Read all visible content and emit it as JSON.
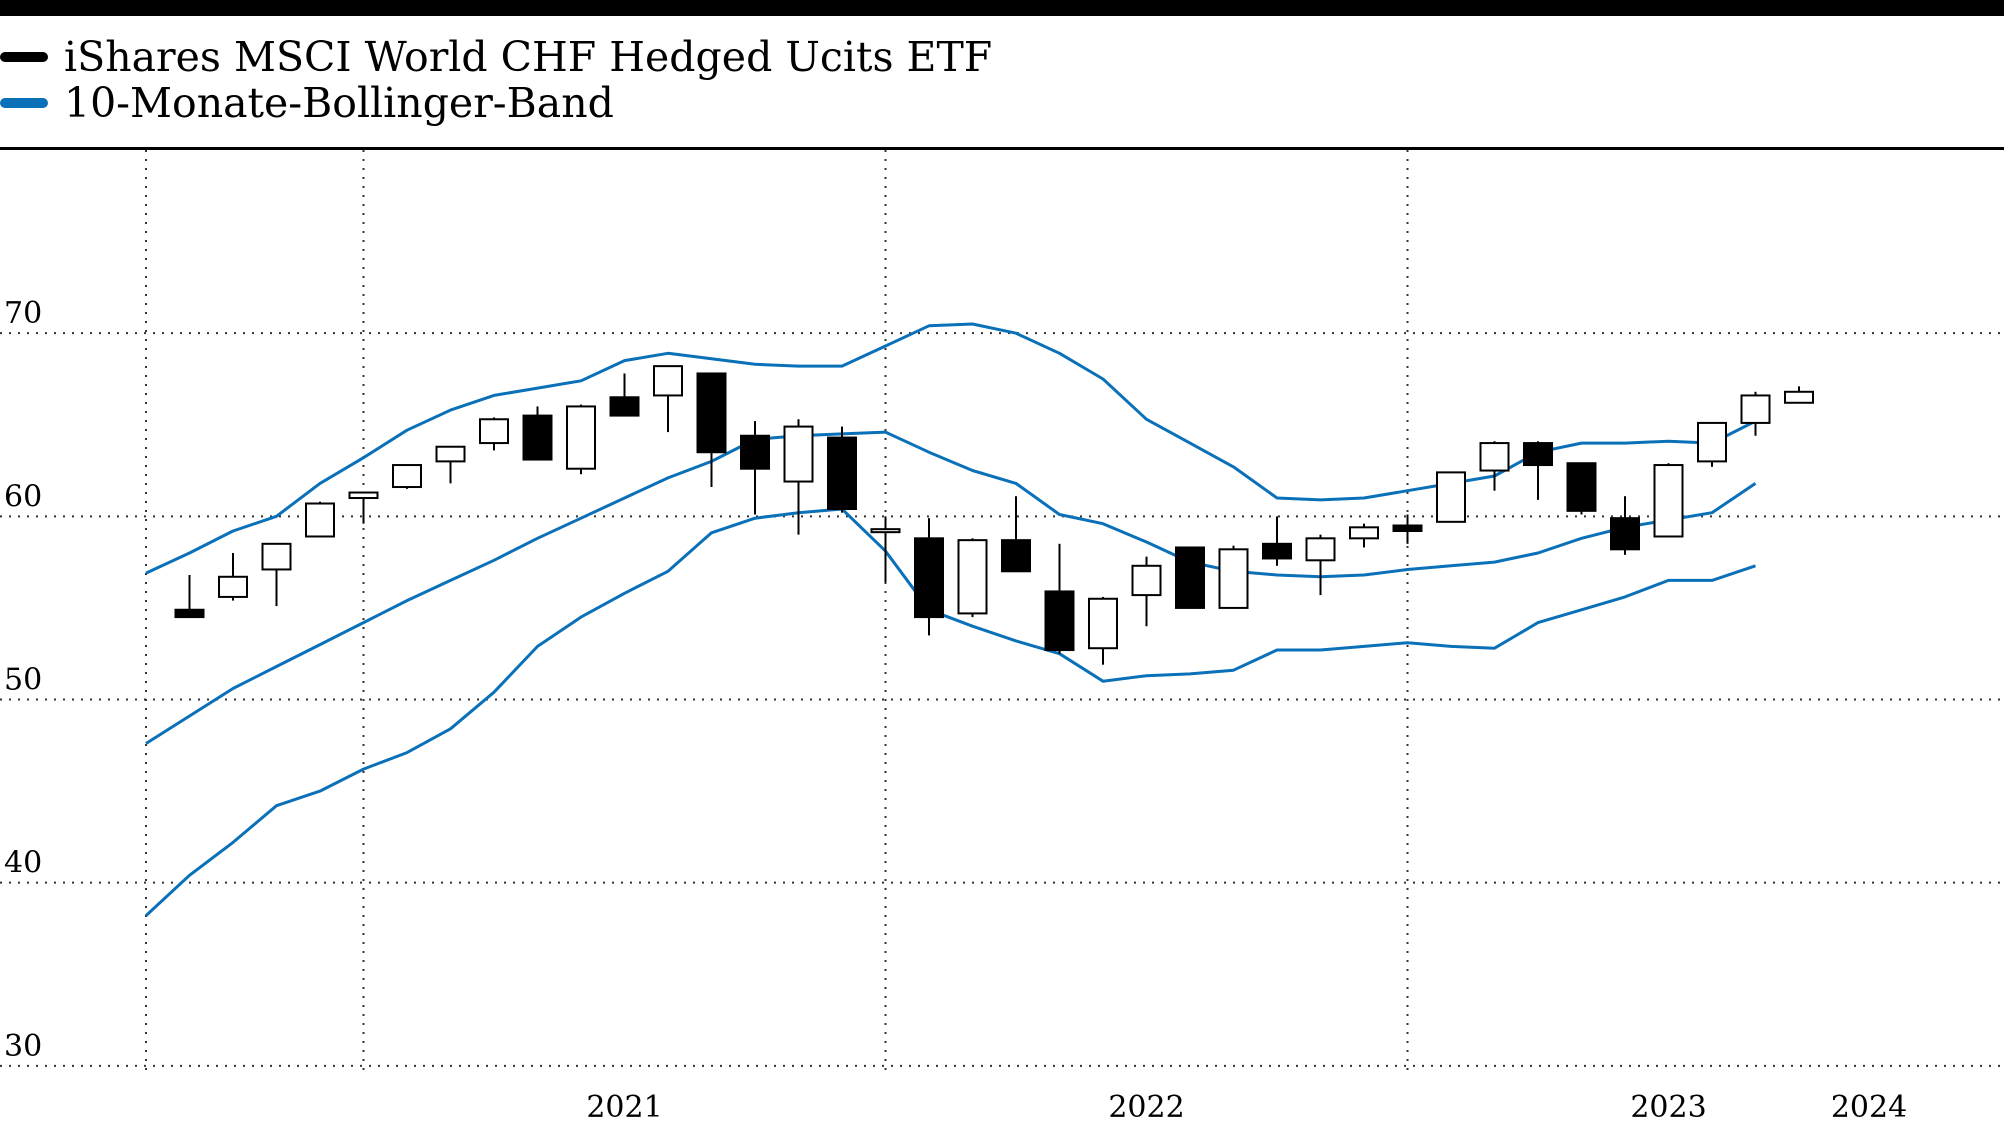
{
  "legend": [
    {
      "label": "iShares MSCI World CHF Hedged Ucits ETF",
      "color": "#000000"
    },
    {
      "label": "10-Monate-Bollinger-Band",
      "color": "#0a70b8"
    }
  ],
  "chart_data": {
    "type": "candlestick",
    "title": "",
    "xlabel": "",
    "ylabel": "",
    "ylim": [
      29.5,
      80
    ],
    "yticks": [
      30,
      40,
      50,
      60,
      70
    ],
    "xtick_labels": [
      "2021",
      "2022",
      "2023",
      "2024"
    ],
    "grid": true,
    "legend_position": "top-left",
    "candles": [
      {
        "date": "2020-09",
        "open": 54.9,
        "high": 56.8,
        "low": 54.5,
        "close": 54.5
      },
      {
        "date": "2020-10",
        "open": 55.6,
        "high": 58.0,
        "low": 55.4,
        "close": 56.7
      },
      {
        "date": "2020-11",
        "open": 57.1,
        "high": 58.5,
        "low": 55.1,
        "close": 58.5
      },
      {
        "date": "2020-12",
        "open": 58.9,
        "high": 60.8,
        "low": 58.9,
        "close": 60.7
      },
      {
        "date": "2021-01",
        "open": 61.0,
        "high": 61.3,
        "low": 59.6,
        "close": 61.3
      },
      {
        "date": "2021-02",
        "open": 61.6,
        "high": 62.8,
        "low": 61.5,
        "close": 62.8
      },
      {
        "date": "2021-03",
        "open": 63.0,
        "high": 63.8,
        "low": 61.8,
        "close": 63.8
      },
      {
        "date": "2021-04",
        "open": 64.0,
        "high": 65.4,
        "low": 63.6,
        "close": 65.3
      },
      {
        "date": "2021-05",
        "open": 65.5,
        "high": 66.0,
        "low": 63.1,
        "close": 63.1
      },
      {
        "date": "2021-06",
        "open": 62.6,
        "high": 66.1,
        "low": 62.3,
        "close": 66.0
      },
      {
        "date": "2021-07",
        "open": 66.5,
        "high": 67.8,
        "low": 65.5,
        "close": 65.5
      },
      {
        "date": "2021-08",
        "open": 66.6,
        "high": 68.2,
        "low": 64.6,
        "close": 68.2
      },
      {
        "date": "2021-09",
        "open": 67.8,
        "high": 67.8,
        "low": 61.6,
        "close": 63.5
      },
      {
        "date": "2021-10",
        "open": 64.4,
        "high": 65.2,
        "low": 60.1,
        "close": 62.6
      },
      {
        "date": "2021-11",
        "open": 61.9,
        "high": 65.3,
        "low": 59.0,
        "close": 64.9
      },
      {
        "date": "2021-12",
        "open": 64.3,
        "high": 64.9,
        "low": 60.2,
        "close": 60.4
      },
      {
        "date": "2022-01",
        "open": 59.3,
        "high": 60.0,
        "low": 56.4,
        "close": 59.3
      },
      {
        "date": "2022-02",
        "open": 58.8,
        "high": 59.9,
        "low": 53.5,
        "close": 54.5
      },
      {
        "date": "2022-03",
        "open": 54.7,
        "high": 58.8,
        "low": 54.5,
        "close": 58.7
      },
      {
        "date": "2022-04",
        "open": 58.7,
        "high": 61.1,
        "low": 57.0,
        "close": 57.0
      },
      {
        "date": "2022-05",
        "open": 55.9,
        "high": 58.5,
        "low": 52.5,
        "close": 52.7
      },
      {
        "date": "2022-06",
        "open": 52.8,
        "high": 55.6,
        "low": 51.9,
        "close": 55.5
      },
      {
        "date": "2022-07",
        "open": 55.7,
        "high": 57.8,
        "low": 54.0,
        "close": 57.3
      },
      {
        "date": "2022-08",
        "open": 58.3,
        "high": 58.3,
        "low": 55.0,
        "close": 55.0
      },
      {
        "date": "2022-09",
        "open": 55.0,
        "high": 58.4,
        "low": 55.0,
        "close": 58.2
      },
      {
        "date": "2022-10",
        "open": 58.5,
        "high": 60.0,
        "low": 57.3,
        "close": 57.7
      },
      {
        "date": "2022-11",
        "open": 57.6,
        "high": 59.0,
        "low": 55.7,
        "close": 58.8
      },
      {
        "date": "2022-12",
        "open": 58.8,
        "high": 59.6,
        "low": 58.3,
        "close": 59.4
      },
      {
        "date": "2023-01",
        "open": 59.5,
        "high": 60.1,
        "low": 58.5,
        "close": 59.2
      },
      {
        "date": "2023-02",
        "open": 59.7,
        "high": 62.4,
        "low": 59.7,
        "close": 62.4
      },
      {
        "date": "2023-03",
        "open": 62.5,
        "high": 64.1,
        "low": 61.4,
        "close": 64.0
      },
      {
        "date": "2023-04",
        "open": 64.0,
        "high": 64.1,
        "low": 60.9,
        "close": 62.8
      },
      {
        "date": "2023-05",
        "open": 62.9,
        "high": 62.9,
        "low": 60.1,
        "close": 60.3
      },
      {
        "date": "2023-06",
        "open": 59.9,
        "high": 61.1,
        "low": 57.9,
        "close": 58.2
      },
      {
        "date": "2023-07",
        "open": 58.9,
        "high": 62.9,
        "low": 58.9,
        "close": 62.8
      },
      {
        "date": "2023-08",
        "open": 63.0,
        "high": 65.1,
        "low": 62.7,
        "close": 65.1
      },
      {
        "date": "2023-09",
        "open": 65.1,
        "high": 66.8,
        "low": 64.4,
        "close": 66.6
      },
      {
        "date": "2023-10",
        "open": 66.2,
        "high": 67.1,
        "low": 66.2,
        "close": 66.8
      }
    ],
    "series": [
      {
        "name": "10-Monate-Bollinger-Band",
        "role": "upper",
        "x": [
          "2020-08",
          "2020-09",
          "2020-10",
          "2020-11",
          "2020-12",
          "2021-01",
          "2021-02",
          "2021-03",
          "2021-04",
          "2021-05",
          "2021-06",
          "2021-07",
          "2021-08",
          "2021-09",
          "2021-10",
          "2021-11",
          "2021-12",
          "2022-01",
          "2022-02",
          "2022-03",
          "2022-04",
          "2022-05",
          "2022-06",
          "2022-07",
          "2022-08",
          "2022-09",
          "2022-10",
          "2022-11",
          "2022-12",
          "2023-01",
          "2023-02",
          "2023-03",
          "2023-04",
          "2023-05",
          "2023-06",
          "2023-07",
          "2023-08",
          "2023-09"
        ],
        "values": [
          56.9,
          58.0,
          59.2,
          60.0,
          61.8,
          63.2,
          64.7,
          65.8,
          66.6,
          67.0,
          67.4,
          68.5,
          68.9,
          68.6,
          68.3,
          68.2,
          68.2,
          69.3,
          70.4,
          70.5,
          70.0,
          68.9,
          67.5,
          65.3,
          64.0,
          62.7,
          61.0,
          60.9,
          61.0,
          61.4,
          61.8,
          62.2,
          63.5,
          64.0,
          64.0,
          64.1,
          64.0,
          65.2
        ]
      },
      {
        "name": "",
        "role": "middle",
        "x": [
          "2020-08",
          "2020-09",
          "2020-10",
          "2020-11",
          "2020-12",
          "2021-01",
          "2021-02",
          "2021-03",
          "2021-04",
          "2021-05",
          "2021-06",
          "2021-07",
          "2021-08",
          "2021-09",
          "2021-10",
          "2021-11",
          "2021-12",
          "2022-01",
          "2022-02",
          "2022-03",
          "2022-04",
          "2022-05",
          "2022-06",
          "2022-07",
          "2022-08",
          "2022-09",
          "2022-10",
          "2022-11",
          "2022-12",
          "2023-01",
          "2023-02",
          "2023-03",
          "2023-04",
          "2023-05",
          "2023-06",
          "2023-07",
          "2023-08",
          "2023-09"
        ],
        "values": [
          47.6,
          49.1,
          50.6,
          51.8,
          53.0,
          54.2,
          55.4,
          56.5,
          57.6,
          58.8,
          59.9,
          61.0,
          62.1,
          63.0,
          64.2,
          64.4,
          64.5,
          64.6,
          63.5,
          62.5,
          61.8,
          60.1,
          59.6,
          58.6,
          57.5,
          57.0,
          56.8,
          56.7,
          56.8,
          57.1,
          57.3,
          57.5,
          58.0,
          58.8,
          59.4,
          59.8,
          60.2,
          61.8
        ]
      },
      {
        "name": "",
        "role": "lower",
        "x": [
          "2020-08",
          "2020-09",
          "2020-10",
          "2020-11",
          "2020-12",
          "2021-01",
          "2021-02",
          "2021-03",
          "2021-04",
          "2021-05",
          "2021-06",
          "2021-07",
          "2021-08",
          "2021-09",
          "2021-10",
          "2021-11",
          "2021-12",
          "2022-01",
          "2022-02",
          "2022-03",
          "2022-04",
          "2022-05",
          "2022-06",
          "2022-07",
          "2022-08",
          "2022-09",
          "2022-10",
          "2022-11",
          "2022-12",
          "2023-01",
          "2023-02",
          "2023-03",
          "2023-04",
          "2023-05",
          "2023-06",
          "2023-07",
          "2023-08",
          "2023-09"
        ],
        "values": [
          38.2,
          40.4,
          42.2,
          44.2,
          45.0,
          46.2,
          47.1,
          48.4,
          50.4,
          52.9,
          54.5,
          55.8,
          57.0,
          59.1,
          59.9,
          60.2,
          60.4,
          58.1,
          54.9,
          54.0,
          53.2,
          52.5,
          51.0,
          51.3,
          51.4,
          51.6,
          52.7,
          52.7,
          52.9,
          53.1,
          52.9,
          52.8,
          54.2,
          54.9,
          55.6,
          56.5,
          56.5,
          57.3
        ]
      }
    ]
  }
}
